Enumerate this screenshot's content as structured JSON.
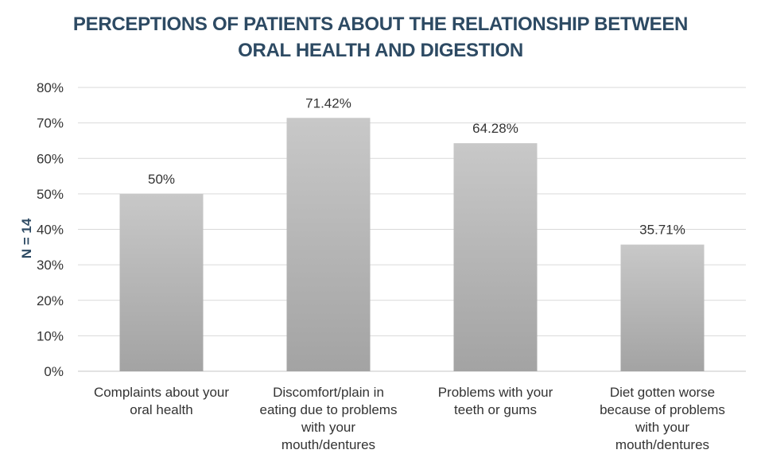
{
  "chart_data": {
    "type": "bar",
    "title": [
      "PERCEPTIONS OF PATIENTS ABOUT THE RELATIONSHIP BETWEEN",
      "ORAL HEALTH AND DIGESTION"
    ],
    "ylabel": "N = 14",
    "xlabel": "",
    "categories": [
      [
        "Complaints about your",
        "oral health"
      ],
      [
        "Discomfort/plain in",
        "eating due to problems",
        "with your",
        "mouth/dentures"
      ],
      [
        "Problems with your",
        "teeth or gums"
      ],
      [
        "Diet gotten worse",
        "because of problems",
        "with your",
        "mouth/dentures"
      ]
    ],
    "values": [
      50,
      71.42,
      64.28,
      35.71
    ],
    "data_labels": [
      "50%",
      "71.42%",
      "64.28%",
      "35.71%"
    ],
    "ylim": [
      0,
      80
    ],
    "yticks": [
      0,
      10,
      20,
      30,
      40,
      50,
      60,
      70,
      80
    ],
    "ytick_labels": [
      "0%",
      "10%",
      "20%",
      "30%",
      "40%",
      "50%",
      "60%",
      "70%",
      "80%"
    ],
    "grid": true,
    "legend": "none",
    "colors": {
      "bar_top": "#c8c8c8",
      "bar_bottom": "#a3a3a3",
      "grid": "#d9d9d9",
      "title": "#2d4a63"
    }
  }
}
